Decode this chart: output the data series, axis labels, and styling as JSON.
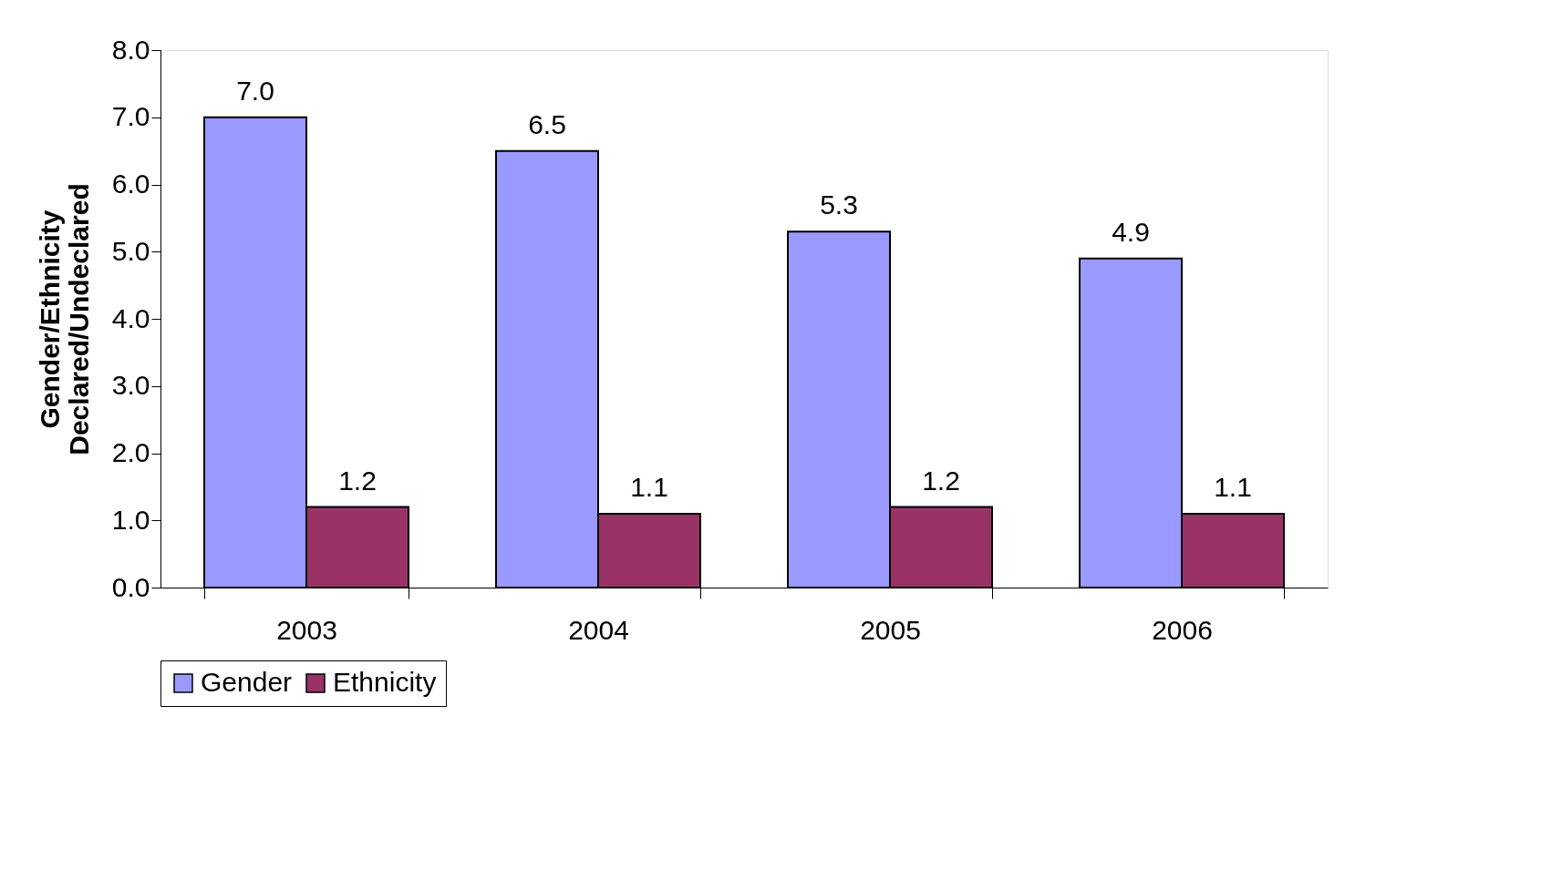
{
  "chart_data": {
    "type": "bar",
    "ylabel": "Gender/Ethnicity\nDeclared/Undeclared",
    "categories": [
      "2003",
      "2004",
      "2005",
      "2006"
    ],
    "series": [
      {
        "name": "Gender",
        "color": "#9999ff",
        "values": [
          7.0,
          6.5,
          5.3,
          4.9
        ],
        "value_labels": [
          "7.0",
          "6.5",
          "5.3",
          "4.9"
        ]
      },
      {
        "name": "Ethnicity",
        "color": "#993366",
        "values": [
          1.2,
          1.1,
          1.2,
          1.1
        ],
        "value_labels": [
          "1.2",
          "1.1",
          "1.2",
          "1.1"
        ]
      }
    ],
    "ylim": [
      0,
      8
    ],
    "yticks": [
      {
        "value": 0,
        "label": "0.0"
      },
      {
        "value": 1,
        "label": "1.0"
      },
      {
        "value": 2,
        "label": "2.0"
      },
      {
        "value": 3,
        "label": "3.0"
      },
      {
        "value": 4,
        "label": "4.0"
      },
      {
        "value": 5,
        "label": "5.0"
      },
      {
        "value": 6,
        "label": "6.0"
      },
      {
        "value": 7,
        "label": "7.0"
      },
      {
        "value": 8,
        "label": "8.0"
      }
    ],
    "grid": false,
    "legend": "bottom"
  }
}
